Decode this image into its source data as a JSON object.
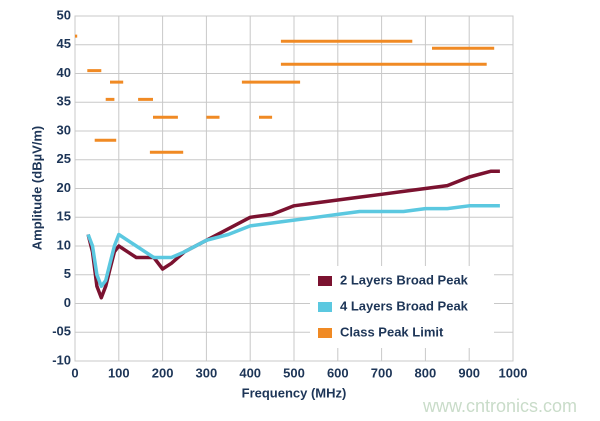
{
  "chart_data": {
    "type": "line",
    "x_label": "Frequency (MHz)",
    "y_label": "Amplitude (dBµV/m)",
    "xlim": [
      0,
      1000
    ],
    "xticks": [
      0,
      100,
      200,
      300,
      400,
      500,
      600,
      700,
      800,
      900,
      1000
    ],
    "ylim": [
      -10,
      50
    ],
    "yticks": [
      -10,
      {
        "value": -5,
        "label": "-05"
      },
      0,
      5,
      10,
      15,
      20,
      25,
      30,
      35,
      40,
      45,
      50
    ],
    "grid": true,
    "legend": "lower right",
    "watermark": "www.cntronics.com",
    "series": [
      {
        "name": "2 Layers Broad Peak",
        "color": "#7b1230",
        "x": [
          30,
          40,
          50,
          60,
          70,
          80,
          90,
          100,
          120,
          140,
          160,
          180,
          200,
          220,
          250,
          300,
          350,
          400,
          450,
          500,
          550,
          600,
          650,
          700,
          750,
          800,
          850,
          900,
          950,
          970
        ],
        "values": [
          12,
          9,
          3,
          1,
          3,
          6,
          9,
          10,
          9,
          8,
          8,
          8,
          6,
          7,
          9,
          11,
          13,
          15,
          15.5,
          17,
          17.5,
          18,
          18.5,
          19,
          19.5,
          20,
          20.5,
          22,
          23,
          23
        ]
      },
      {
        "name": "4 Layers Broad Peak",
        "color": "#5bc8e0",
        "x": [
          30,
          40,
          50,
          60,
          70,
          80,
          90,
          100,
          120,
          140,
          160,
          180,
          200,
          220,
          250,
          300,
          350,
          400,
          450,
          500,
          550,
          600,
          650,
          700,
          750,
          800,
          850,
          900,
          950,
          970
        ],
        "values": [
          12,
          10,
          5,
          3,
          4,
          7,
          10,
          12,
          11,
          10,
          9,
          8,
          8,
          8,
          9,
          11,
          12,
          13.5,
          14,
          14.5,
          15,
          15.5,
          16,
          16,
          16,
          16.5,
          16.5,
          17,
          17,
          17
        ]
      },
      {
        "name": "Class Peak Limit",
        "color": "#f08a24",
        "x": [
          0,
          5,
          5,
          28,
          60,
          60,
          80,
          110,
          110,
          70,
          90,
          90,
          144,
          178,
          178,
          178,
          235,
          235,
          300,
          330,
          330,
          420,
          450,
          450,
          45,
          94,
          94,
          171,
          247,
          247,
          381,
          514,
          514,
          470,
          770,
          770,
          815,
          957,
          957,
          470,
          940
        ],
        "values": [
          46.5,
          46.5,
          null,
          40.5,
          40.5,
          null,
          38.5,
          38.5,
          null,
          35.5,
          35.5,
          null,
          35.5,
          35.5,
          null,
          32.4,
          32.4,
          null,
          32.4,
          32.4,
          null,
          32.4,
          32.4,
          null,
          28.4,
          28.4,
          null,
          26.3,
          26.3,
          null,
          38.5,
          38.5,
          null,
          45.6,
          45.6,
          null,
          44.4,
          44.4,
          null,
          41.6,
          41.6
        ]
      }
    ]
  }
}
